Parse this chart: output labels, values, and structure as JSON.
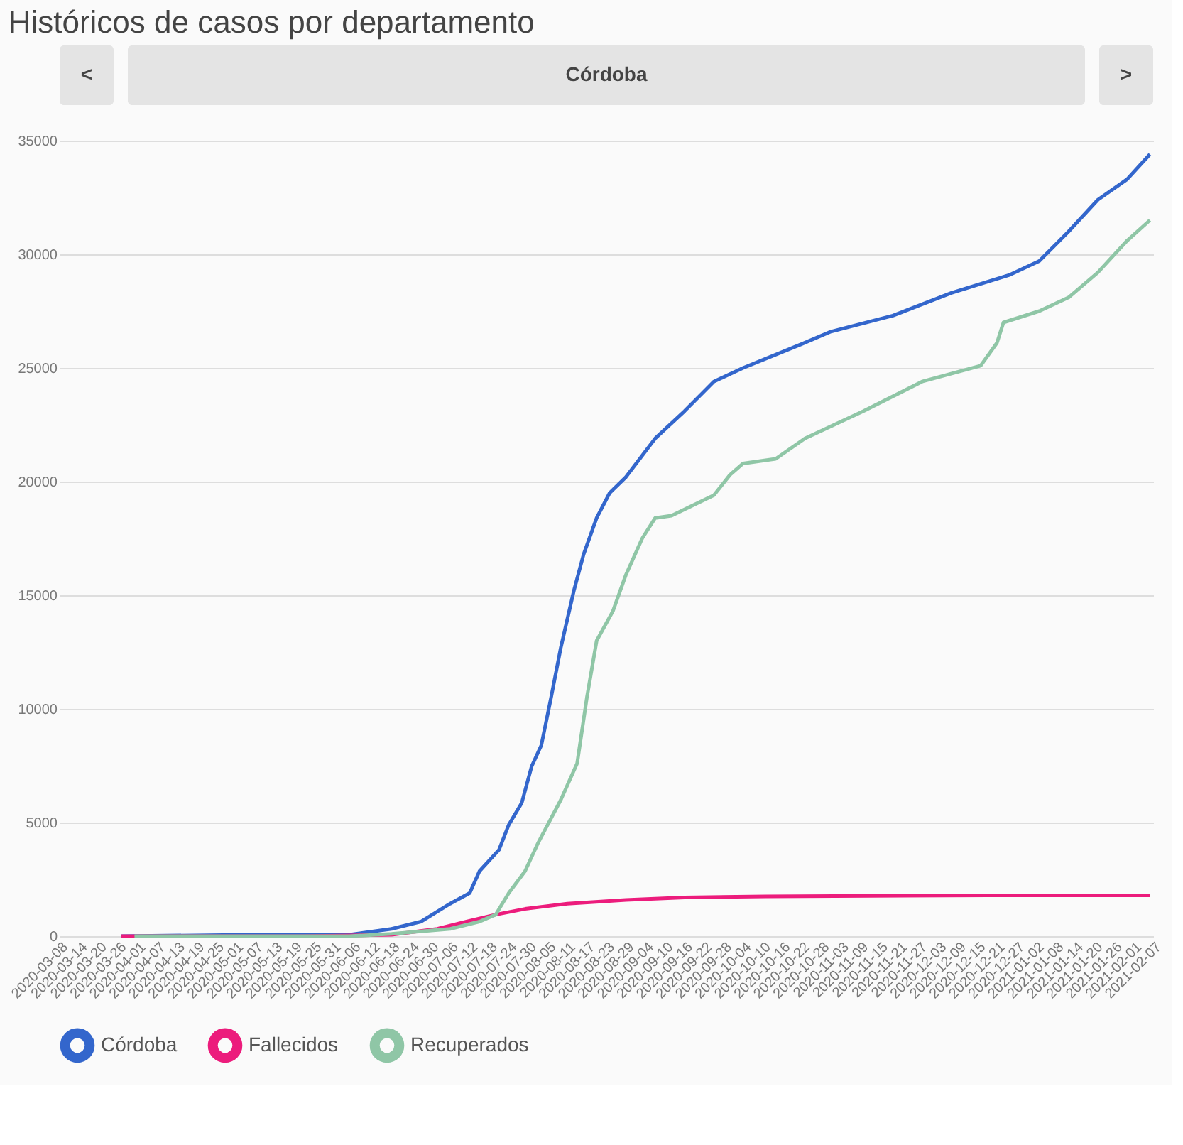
{
  "chart_data": {
    "type": "line",
    "title": "Históricos de casos por departamento",
    "annotations": [
      "<",
      "Córdoba",
      ">"
    ],
    "xlim": [
      "2020-03-08",
      "2021-02-07"
    ],
    "xticks": [
      "2020-03-08",
      "2020-03-14",
      "2020-03-20",
      "2020-03-26",
      "2020-04-01",
      "2020-04-07",
      "2020-04-13",
      "2020-04-19",
      "2020-04-25",
      "2020-05-01",
      "2020-05-07",
      "2020-05-13",
      "2020-05-19",
      "2020-05-25",
      "2020-05-31",
      "2020-06-06",
      "2020-06-12",
      "2020-06-18",
      "2020-06-24",
      "2020-06-30",
      "2020-07-06",
      "2020-07-12",
      "2020-07-18",
      "2020-07-24",
      "2020-07-30",
      "2020-08-05",
      "2020-08-11",
      "2020-08-17",
      "2020-08-23",
      "2020-08-29",
      "2020-09-04",
      "2020-09-10",
      "2020-09-16",
      "2020-09-22",
      "2020-09-28",
      "2020-10-04",
      "2020-10-10",
      "2020-10-16",
      "2020-10-22",
      "2020-10-28",
      "2020-11-03",
      "2020-11-09",
      "2020-11-15",
      "2020-11-21",
      "2020-11-27",
      "2020-12-03",
      "2020-12-09",
      "2020-12-15",
      "2020-12-21",
      "2020-12-27",
      "2021-01-02",
      "2021-01-08",
      "2021-01-14",
      "2021-01-20",
      "2021-01-26",
      "2021-02-01",
      "2021-02-07"
    ],
    "ylim": [
      0,
      35000
    ],
    "yticks": [
      0,
      5000,
      10000,
      15000,
      20000,
      25000,
      30000,
      35000
    ],
    "grid": "y",
    "legend": "bottom",
    "marker": "none",
    "line_style": "solid",
    "series": [
      {
        "name": "Córdoba",
        "color": "#3366cc",
        "x": [
          "2020-03-27",
          "2020-05-06",
          "2020-06-05",
          "2020-06-18",
          "2020-06-27",
          "2020-07-06",
          "2020-07-12",
          "2020-07-15",
          "2020-07-21",
          "2020-07-24",
          "2020-07-28",
          "2020-07-31",
          "2020-08-03",
          "2020-08-06",
          "2020-08-09",
          "2020-08-13",
          "2020-08-16",
          "2020-08-20",
          "2020-08-24",
          "2020-08-29",
          "2020-09-07",
          "2020-09-16",
          "2020-09-25",
          "2020-10-04",
          "2020-10-22",
          "2020-10-31",
          "2020-11-19",
          "2020-12-07",
          "2020-12-25",
          "2021-01-03",
          "2021-01-12",
          "2021-01-21",
          "2021-01-30",
          "2021-02-06"
        ],
        "values": [
          0,
          60,
          60,
          320,
          640,
          1430,
          1900,
          2860,
          3800,
          4900,
          5870,
          7460,
          8400,
          10500,
          12700,
          15200,
          16800,
          18400,
          19500,
          20200,
          21900,
          23100,
          24400,
          25000,
          26050,
          26600,
          27300,
          28300,
          29100,
          29700,
          31000,
          32400,
          33300,
          34400
        ]
      },
      {
        "name": "Fallecidos",
        "color": "#ec1c7c",
        "x": [
          "2020-03-27",
          "2020-04-01",
          "2020-05-22",
          "2020-06-18",
          "2020-07-02",
          "2020-07-11",
          "2020-07-20",
          "2020-07-29",
          "2020-08-11",
          "2020-08-29",
          "2020-09-16",
          "2020-10-11",
          "2020-12-18",
          "2021-02-06"
        ],
        "values": [
          0,
          0,
          0,
          60,
          320,
          640,
          950,
          1200,
          1430,
          1590,
          1700,
          1750,
          1800,
          1800
        ]
      },
      {
        "name": "Recuperados",
        "color": "#8fc6a6",
        "x": [
          "2020-03-31",
          "2020-06-05",
          "2020-06-18",
          "2020-07-06",
          "2020-07-15",
          "2020-07-20",
          "2020-07-24",
          "2020-07-29",
          "2020-08-02",
          "2020-08-09",
          "2020-08-14",
          "2020-08-17",
          "2020-08-20",
          "2020-08-25",
          "2020-08-29",
          "2020-09-03",
          "2020-09-07",
          "2020-09-12",
          "2020-09-25",
          "2020-09-30",
          "2020-10-04",
          "2020-10-14",
          "2020-10-23",
          "2020-11-01",
          "2020-11-10",
          "2020-11-28",
          "2020-12-16",
          "2020-12-21",
          "2020-12-23",
          "2021-01-03",
          "2021-01-12",
          "2021-01-21",
          "2021-01-30",
          "2021-02-06"
        ],
        "values": [
          0,
          0,
          100,
          320,
          640,
          950,
          1900,
          2860,
          4100,
          6000,
          7600,
          10500,
          13000,
          14300,
          15900,
          17500,
          18400,
          18500,
          19400,
          20300,
          20800,
          21000,
          21900,
          22500,
          23100,
          24400,
          25100,
          26100,
          27000,
          27500,
          28100,
          29200,
          30600,
          31500
        ]
      }
    ]
  }
}
